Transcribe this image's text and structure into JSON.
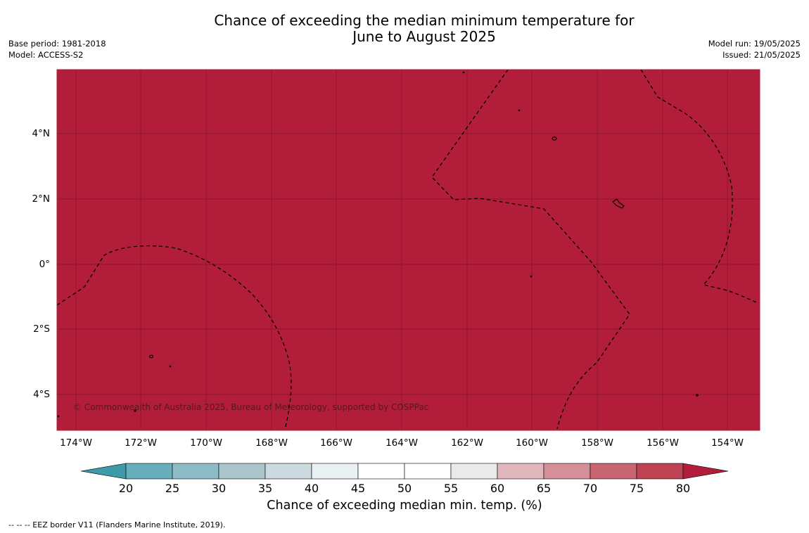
{
  "title": {
    "line1": "Chance of exceeding the median minimum temperature for",
    "line2": "June to August 2025"
  },
  "meta": {
    "base_period": "Base period: 1981-2018",
    "model": "Model: ACCESS-S2",
    "model_run": "Model run: 19/05/2025",
    "issued": "Issued: 21/05/2025"
  },
  "map": {
    "fill_color": "#b21e3a",
    "fill_bin": "80",
    "grid_color": "#6e0d1e",
    "eez_border_style": "dashed",
    "lat_labels": [
      {
        "id": "4n",
        "text": "4°N"
      },
      {
        "id": "2n",
        "text": "2°N"
      },
      {
        "id": "eq",
        "text": "0°"
      },
      {
        "id": "2s",
        "text": "2°S"
      },
      {
        "id": "4s",
        "text": "4°S"
      }
    ],
    "lon_labels": [
      {
        "id": "174w",
        "text": "174°W"
      },
      {
        "id": "172w",
        "text": "172°W"
      },
      {
        "id": "170w",
        "text": "170°W"
      },
      {
        "id": "168w",
        "text": "168°W"
      },
      {
        "id": "166w",
        "text": "166°W"
      },
      {
        "id": "164w",
        "text": "164°W"
      },
      {
        "id": "162w",
        "text": "162°W"
      },
      {
        "id": "160w",
        "text": "160°W"
      },
      {
        "id": "158w",
        "text": "158°W"
      },
      {
        "id": "156w",
        "text": "156°W"
      },
      {
        "id": "154w",
        "text": "154°W"
      }
    ],
    "copyright": "© Commonwealth of Australia 2025, Bureau of Meteorology, supported by COSPPac"
  },
  "colorbar": {
    "ticks": [
      "20",
      "25",
      "30",
      "35",
      "40",
      "45",
      "50",
      "55",
      "60",
      "65",
      "70",
      "75",
      "80"
    ],
    "colors": {
      "below_20": "#3d9aa8",
      "20_25": "#68aebc",
      "25_30": "#8dbcc6",
      "30_35": "#aac6cc",
      "35_40": "#cbdade",
      "40_45": "#e9f1f2",
      "45_50": "#ffffff",
      "50_55": "#ffffff",
      "55_60": "#eaeaea",
      "60_65": "#e3b6bd",
      "65_70": "#d58f99",
      "70_75": "#c96571",
      "75_80": "#bd4252",
      "above_80": "#b21e3a"
    },
    "label": "Chance of exceeding median min. temp. (%)"
  },
  "footnote": "--  --  -- EEZ border V11 (Flanders Marine Institute, 2019)."
}
